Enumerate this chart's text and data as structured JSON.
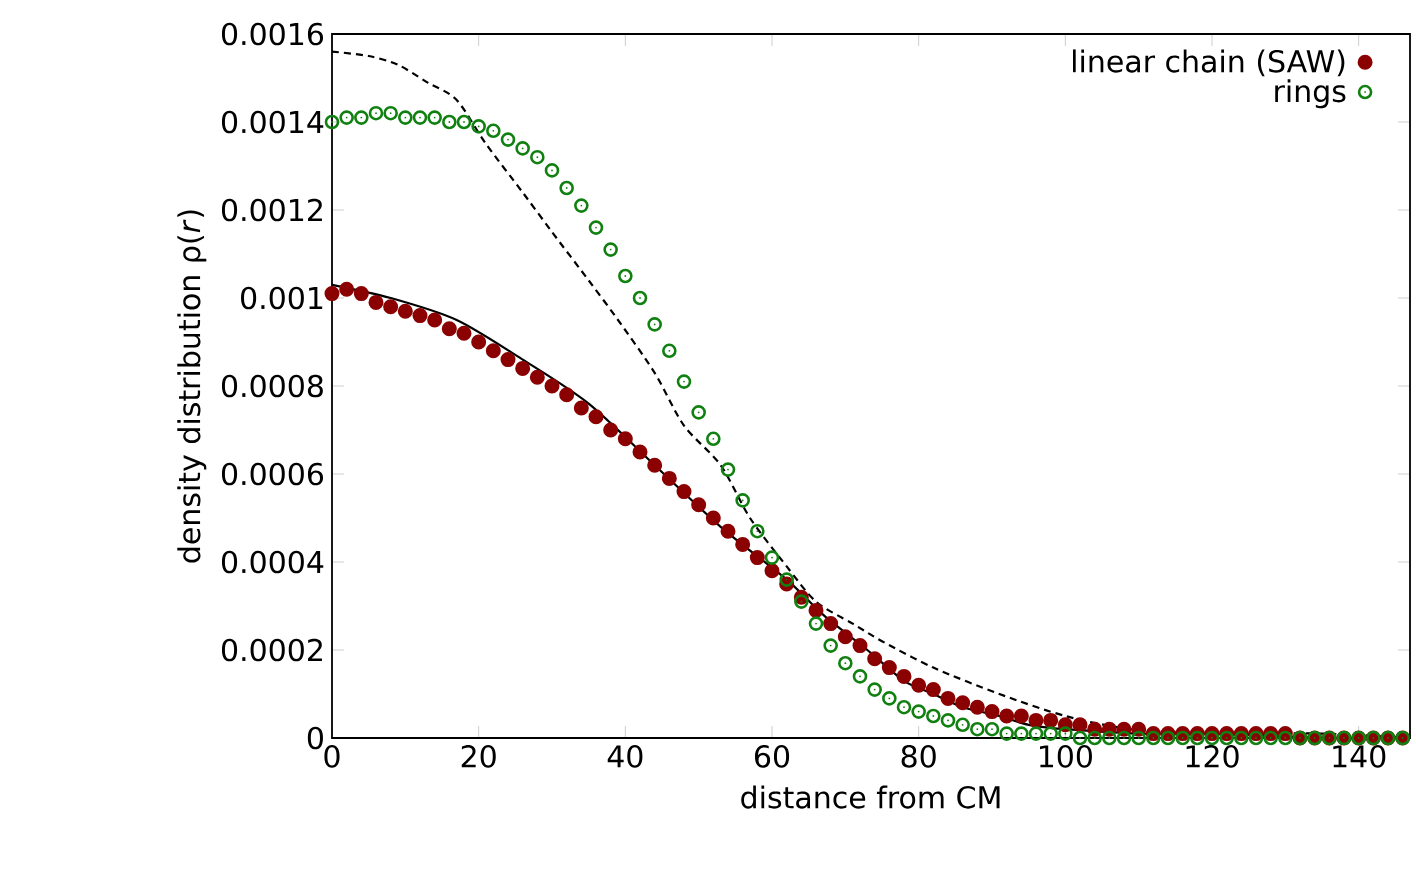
{
  "chart_data": {
    "type": "scatter",
    "xlabel": "distance from CM",
    "ylabel": "density distribution ρ(*r*)",
    "xlim": [
      0,
      147
    ],
    "ylim": [
      0,
      0.0016
    ],
    "xticks": [
      0,
      20,
      40,
      60,
      80,
      100,
      120,
      140
    ],
    "yticks": [
      0,
      0.0002,
      0.0004,
      0.0006,
      0.0008,
      0.001,
      0.0012,
      0.0014,
      0.0016
    ],
    "legend": "top right",
    "series": [
      {
        "name": "linear chain (SAW)",
        "color": "#8b0000",
        "marker": "circle",
        "x": [
          0,
          2,
          4,
          6,
          8,
          10,
          12,
          14,
          16,
          18,
          20,
          22,
          24,
          26,
          28,
          30,
          32,
          34,
          36,
          38,
          40,
          42,
          44,
          46,
          48,
          50,
          52,
          54,
          56,
          58,
          60,
          62,
          64,
          66,
          68,
          70,
          72,
          74,
          76,
          78,
          80,
          82,
          84,
          86,
          88,
          90,
          92,
          94,
          96,
          98,
          100,
          102,
          104,
          106,
          108,
          110,
          112,
          114,
          116,
          118,
          120,
          122,
          124,
          126,
          128,
          130,
          132,
          134,
          136,
          138,
          140,
          142,
          144,
          146
        ],
        "values": [
          0.00101,
          0.00102,
          0.00101,
          0.00099,
          0.00098,
          0.00097,
          0.00096,
          0.00095,
          0.00093,
          0.00092,
          0.0009,
          0.00088,
          0.00086,
          0.00084,
          0.00082,
          0.0008,
          0.00078,
          0.00075,
          0.00073,
          0.0007,
          0.00068,
          0.00065,
          0.00062,
          0.00059,
          0.00056,
          0.00053,
          0.0005,
          0.00047,
          0.00044,
          0.00041,
          0.00038,
          0.00035,
          0.00032,
          0.00029,
          0.00026,
          0.00023,
          0.00021,
          0.00018,
          0.00016,
          0.00014,
          0.00012,
          0.00011,
          9e-05,
          8e-05,
          7e-05,
          6e-05,
          5e-05,
          5e-05,
          4e-05,
          4e-05,
          3e-05,
          3e-05,
          2e-05,
          2e-05,
          2e-05,
          2e-05,
          1e-05,
          1e-05,
          1e-05,
          1e-05,
          1e-05,
          1e-05,
          1e-05,
          1e-05,
          1e-05,
          1e-05,
          0,
          0,
          0,
          0,
          0,
          0,
          0,
          0
        ]
      },
      {
        "name": "rings",
        "color": "#108010",
        "marker": "circle",
        "x": [
          0,
          2,
          4,
          6,
          8,
          10,
          12,
          14,
          16,
          18,
          20,
          22,
          24,
          26,
          28,
          30,
          32,
          34,
          36,
          38,
          40,
          42,
          44,
          46,
          48,
          50,
          52,
          54,
          56,
          58,
          60,
          62,
          64,
          66,
          68,
          70,
          72,
          74,
          76,
          78,
          80,
          82,
          84,
          86,
          88,
          90,
          92,
          94,
          96,
          98,
          100,
          102,
          104,
          106,
          108,
          110,
          112,
          114,
          116,
          118,
          120,
          122,
          124,
          126,
          128,
          130,
          132,
          134,
          136,
          138,
          140,
          142,
          144,
          146
        ],
        "values": [
          0.0014,
          0.00141,
          0.00141,
          0.00142,
          0.00142,
          0.00141,
          0.00141,
          0.00141,
          0.0014,
          0.0014,
          0.00139,
          0.00138,
          0.00136,
          0.00134,
          0.00132,
          0.00129,
          0.00125,
          0.00121,
          0.00116,
          0.00111,
          0.00105,
          0.001,
          0.00094,
          0.00088,
          0.00081,
          0.00074,
          0.00068,
          0.00061,
          0.00054,
          0.00047,
          0.00041,
          0.00036,
          0.00031,
          0.00026,
          0.00021,
          0.00017,
          0.00014,
          0.00011,
          9e-05,
          7e-05,
          6e-05,
          5e-05,
          4e-05,
          3e-05,
          2e-05,
          2e-05,
          1e-05,
          1e-05,
          1e-05,
          1e-05,
          1e-05,
          0,
          0,
          0,
          0,
          0,
          0,
          0,
          0,
          0,
          0,
          0,
          0,
          0,
          0,
          0,
          0,
          0,
          0,
          0,
          0,
          0,
          0,
          0
        ]
      },
      {
        "color": "#000000",
        "type": "line",
        "line_style": "solid",
        "x": [
          0,
          8,
          17,
          26,
          35,
          44,
          53,
          62,
          67,
          73,
          78,
          82,
          86,
          91,
          95,
          100,
          110,
          120,
          135,
          147
        ],
        "values": [
          0.00103,
          0.001,
          0.00095,
          0.00086,
          0.00076,
          0.00062,
          0.00048,
          0.00036,
          0.00028,
          0.0002,
          0.00013,
          0.0001,
          7e-05,
          5e-05,
          3e-05,
          2e-05,
          1e-05,
          1e-05,
          0,
          0
        ]
      },
      {
        "color": "#000000",
        "type": "line",
        "line_style": "dashed",
        "x": [
          0,
          5,
          9,
          13,
          17,
          21,
          26,
          30,
          35,
          39,
          44,
          48,
          53,
          57,
          62,
          66,
          71,
          75,
          82,
          91,
          100,
          109,
          120,
          135,
          147
        ],
        "values": [
          0.00156,
          0.00155,
          0.00153,
          0.00149,
          0.00145,
          0.00135,
          0.00124,
          0.00115,
          0.00104,
          0.00095,
          0.00083,
          0.00071,
          0.00062,
          0.0005,
          0.00039,
          0.00031,
          0.00026,
          0.00022,
          0.00016,
          0.0001,
          5e-05,
          2e-05,
          1e-05,
          1e-05,
          0
        ]
      }
    ]
  }
}
